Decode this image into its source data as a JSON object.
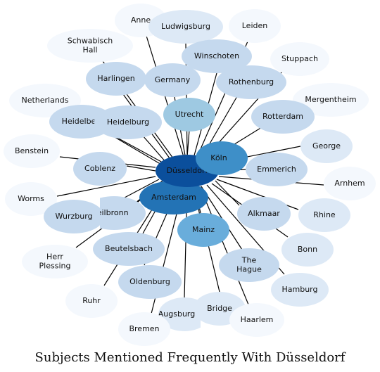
{
  "title": "Subjects Mentioned Frequently With Düsseldorf",
  "center": "Düsseldorf",
  "palette": {
    "level_0": "#f4f8fd",
    "level_1": "#dde9f6",
    "level_2": "#c5d9ee",
    "level_3": "#9ec9e2",
    "level_4": "#69addb",
    "level_5": "#3e8fc8",
    "level_6": "#2373b5",
    "level_7": "#0b4f9c",
    "edge": "#000000"
  },
  "nodes": [
    {
      "id": "dusseldorf",
      "label": "Düsseldorf",
      "level": 7
    },
    {
      "id": "koln",
      "label": "Köln",
      "level": 5
    },
    {
      "id": "amsterdam",
      "label": "Amsterdam",
      "level": 6
    },
    {
      "id": "mainz",
      "label": "Mainz",
      "level": 4
    },
    {
      "id": "utrecht",
      "label": "Utrecht",
      "level": 3
    },
    {
      "id": "anne",
      "label": "Anne",
      "level": 0
    },
    {
      "id": "ludwigsburg",
      "label": "Ludwigsburg",
      "level": 1
    },
    {
      "id": "leiden",
      "label": "Leiden",
      "level": 0
    },
    {
      "id": "schwabisch-hall",
      "label": "Schwabisch\nHall",
      "level": 0
    },
    {
      "id": "winschoten",
      "label": "Winschoten",
      "level": 2
    },
    {
      "id": "stuppach",
      "label": "Stuppach",
      "level": 0
    },
    {
      "id": "harlingen",
      "label": "Harlingen",
      "level": 2
    },
    {
      "id": "germany",
      "label": "Germany",
      "level": 2
    },
    {
      "id": "rothenburg",
      "label": "Rothenburg",
      "level": 2
    },
    {
      "id": "netherlands",
      "label": "Netherlands",
      "level": 0
    },
    {
      "id": "mergentheim",
      "label": "Mergentheim",
      "level": 0
    },
    {
      "id": "heidelbe",
      "label": "Heidelbe",
      "level": 2
    },
    {
      "id": "heidelburg",
      "label": "Heidelburg",
      "level": 2
    },
    {
      "id": "rotterdam",
      "label": "Rotterdam",
      "level": 2
    },
    {
      "id": "benstein",
      "label": "Benstein",
      "level": 0
    },
    {
      "id": "george",
      "label": "George",
      "level": 1
    },
    {
      "id": "coblenz",
      "label": "Coblenz",
      "level": 2
    },
    {
      "id": "emmerich",
      "label": "Emmerich",
      "level": 2
    },
    {
      "id": "arnhem",
      "label": "Arnhem",
      "level": 0
    },
    {
      "id": "worms",
      "label": "Worms",
      "level": 0
    },
    {
      "id": "wurzburg",
      "label": "Wurzburg",
      "level": 2
    },
    {
      "id": "heilbronn",
      "label": "Heilbronn",
      "level": 2
    },
    {
      "id": "alkmaar",
      "label": "Alkmaar",
      "level": 2
    },
    {
      "id": "rhine",
      "label": "Rhine",
      "level": 1
    },
    {
      "id": "herr-plessing",
      "label": "Herr\nPlessing",
      "level": 0
    },
    {
      "id": "beutelsbach",
      "label": "Beutelsbach",
      "level": 2
    },
    {
      "id": "bonn",
      "label": "Bonn",
      "level": 1
    },
    {
      "id": "the-hague",
      "label": "The\nHague",
      "level": 2
    },
    {
      "id": "ruhr",
      "label": "Ruhr",
      "level": 0
    },
    {
      "id": "oldenburg",
      "label": "Oldenburg",
      "level": 2
    },
    {
      "id": "hamburg",
      "label": "Hamburg",
      "level": 1
    },
    {
      "id": "bridge",
      "label": "Bridge",
      "level": 1
    },
    {
      "id": "augsburg",
      "label": "Augsburg",
      "level": 1
    },
    {
      "id": "haarlem",
      "label": "Haarlem",
      "level": 0
    },
    {
      "id": "bremen",
      "label": "Bremen",
      "level": 0
    }
  ]
}
